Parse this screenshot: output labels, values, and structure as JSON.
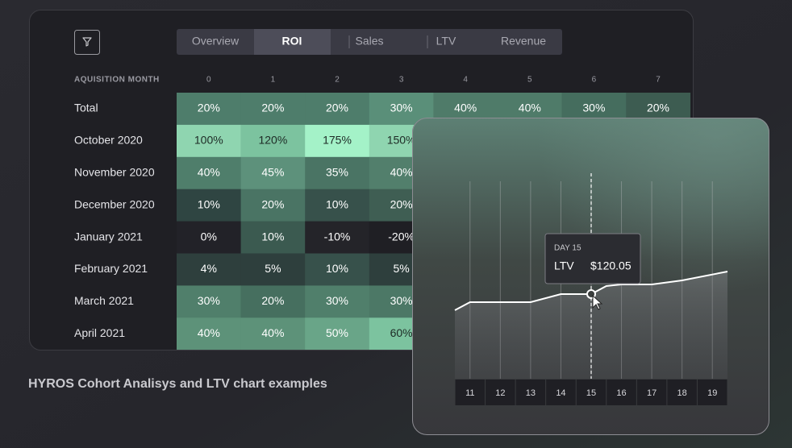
{
  "filter_icon": true,
  "tabs": {
    "items": [
      "Overview",
      "ROI",
      "Sales",
      "LTV",
      "Revenue"
    ],
    "active": 1
  },
  "table": {
    "header": "AQUISITION MONTH",
    "columns": [
      "0",
      "1",
      "2",
      "3",
      "4",
      "5",
      "6",
      "7"
    ],
    "rows": [
      {
        "label": "Total",
        "cells": [
          "20%",
          "20%",
          "20%",
          "30%",
          "40%",
          "40%",
          "30%",
          "20%"
        ],
        "colors": [
          "#4e7d6b",
          "#4e7d6b",
          "#4e7d6b",
          "#5a8f79",
          "#4f7b69",
          "#4f7b69",
          "#456d5e",
          "#3d5c51"
        ]
      },
      {
        "label": "October 2020",
        "cells": [
          "100%",
          "120%",
          "175%",
          "150%"
        ],
        "colors": [
          "#8fd5b0",
          "#7cc39f",
          "#a4f2c8",
          "#8fd5b0"
        ]
      },
      {
        "label": "November 2020",
        "cells": [
          "40%",
          "45%",
          "35%",
          "40%"
        ],
        "colors": [
          "#4f7e6b",
          "#5d917b",
          "#4a7464",
          "#527f6c"
        ]
      },
      {
        "label": "December 2020",
        "cells": [
          "10%",
          "20%",
          "10%",
          "20%"
        ],
        "colors": [
          "#2f4542",
          "#4a7464",
          "#37514b",
          "#3f5e53"
        ]
      },
      {
        "label": "January 2021",
        "cells": [
          "0%",
          "10%",
          "-10%",
          "-20%"
        ],
        "colors": [
          "#222228",
          "#3b5a50",
          "#242429",
          "#1f1f24"
        ]
      },
      {
        "label": "February 2021",
        "cells": [
          "4%",
          "5%",
          "10%",
          "5%"
        ],
        "colors": [
          "#2e3f3d",
          "#2e3f3d",
          "#37514b",
          "#2e3f3d"
        ]
      },
      {
        "label": "March 2021",
        "cells": [
          "30%",
          "20%",
          "30%",
          "30%"
        ],
        "colors": [
          "#507f6b",
          "#466f5f",
          "#507f6b",
          "#4c7866"
        ]
      },
      {
        "label": "April 2021",
        "cells": [
          "40%",
          "40%",
          "50%",
          "60%"
        ],
        "colors": [
          "#5d9279",
          "#5d9279",
          "#69a588",
          "#7cc39f"
        ]
      }
    ]
  },
  "chart_data": {
    "type": "line",
    "x": [
      10.5,
      11,
      13,
      14,
      15,
      15.5,
      16,
      17,
      18,
      19.5
    ],
    "values": [
      100,
      110,
      110,
      120,
      120.05,
      130,
      132,
      132,
      137,
      148
    ],
    "xlim": [
      10.5,
      19.5
    ],
    "ylim": [
      15,
      265
    ],
    "xticks": [
      11,
      12,
      13,
      14,
      15,
      16,
      17,
      18,
      19
    ],
    "color": "#ffffff",
    "tooltip": {
      "index": 4,
      "title": "DAY 15",
      "label": "LTV",
      "value_label": "$120.05"
    }
  },
  "caption": "HYROS Cohort Analisys and LTV chart examples"
}
